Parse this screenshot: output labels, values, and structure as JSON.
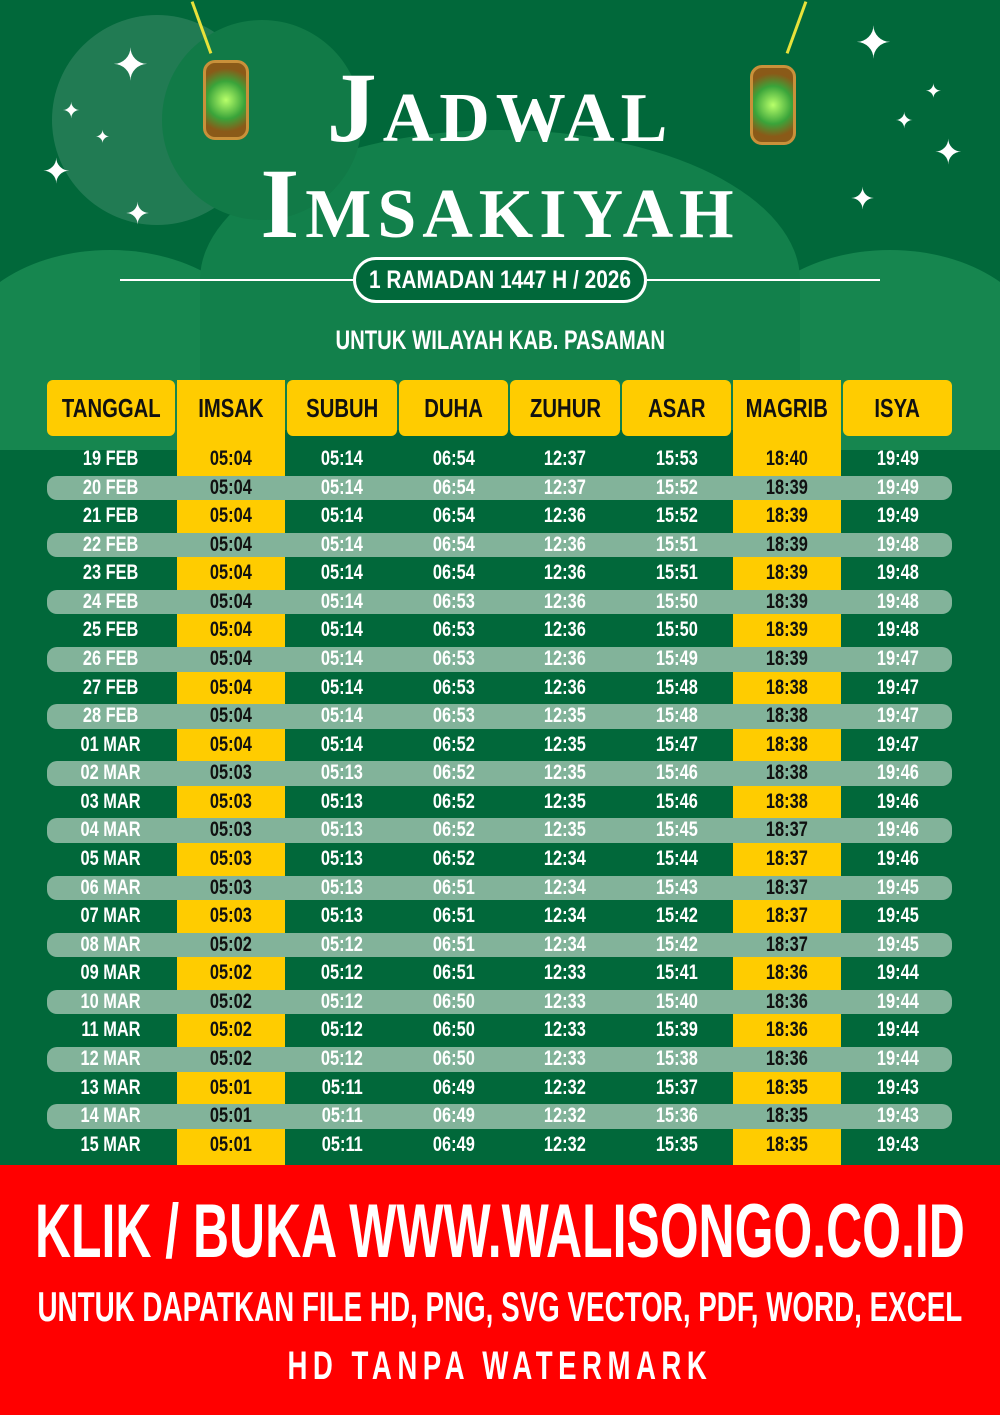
{
  "header": {
    "title_line1": "Jadwal",
    "title_line2": "Imsakiyah",
    "ramadan_label": "1 RAMADAN 1447 H / 2026",
    "region": "UNTUK WILAYAH KAB. PASAMAN"
  },
  "colors": {
    "background": "#01683a",
    "highlight": "#ffcc00",
    "row_alt": "#82b39a",
    "banner": "#ff0000"
  },
  "table": {
    "columns": [
      "TANGGAL",
      "IMSAK",
      "SUBUH",
      "DUHA",
      "ZUHUR",
      "ASAR",
      "MAGRIB",
      "ISYA"
    ],
    "rows": [
      [
        "19 FEB",
        "05:04",
        "05:14",
        "06:54",
        "12:37",
        "15:53",
        "18:40",
        "19:49"
      ],
      [
        "20 FEB",
        "05:04",
        "05:14",
        "06:54",
        "12:37",
        "15:52",
        "18:39",
        "19:49"
      ],
      [
        "21 FEB",
        "05:04",
        "05:14",
        "06:54",
        "12:36",
        "15:52",
        "18:39",
        "19:49"
      ],
      [
        "22 FEB",
        "05:04",
        "05:14",
        "06:54",
        "12:36",
        "15:51",
        "18:39",
        "19:48"
      ],
      [
        "23 FEB",
        "05:04",
        "05:14",
        "06:54",
        "12:36",
        "15:51",
        "18:39",
        "19:48"
      ],
      [
        "24 FEB",
        "05:04",
        "05:14",
        "06:53",
        "12:36",
        "15:50",
        "18:39",
        "19:48"
      ],
      [
        "25 FEB",
        "05:04",
        "05:14",
        "06:53",
        "12:36",
        "15:50",
        "18:39",
        "19:48"
      ],
      [
        "26 FEB",
        "05:04",
        "05:14",
        "06:53",
        "12:36",
        "15:49",
        "18:39",
        "19:47"
      ],
      [
        "27 FEB",
        "05:04",
        "05:14",
        "06:53",
        "12:36",
        "15:48",
        "18:38",
        "19:47"
      ],
      [
        "28 FEB",
        "05:04",
        "05:14",
        "06:53",
        "12:35",
        "15:48",
        "18:38",
        "19:47"
      ],
      [
        "01 MAR",
        "05:04",
        "05:14",
        "06:52",
        "12:35",
        "15:47",
        "18:38",
        "19:47"
      ],
      [
        "02 MAR",
        "05:03",
        "05:13",
        "06:52",
        "12:35",
        "15:46",
        "18:38",
        "19:46"
      ],
      [
        "03 MAR",
        "05:03",
        "05:13",
        "06:52",
        "12:35",
        "15:46",
        "18:38",
        "19:46"
      ],
      [
        "04 MAR",
        "05:03",
        "05:13",
        "06:52",
        "12:35",
        "15:45",
        "18:37",
        "19:46"
      ],
      [
        "05 MAR",
        "05:03",
        "05:13",
        "06:52",
        "12:34",
        "15:44",
        "18:37",
        "19:46"
      ],
      [
        "06 MAR",
        "05:03",
        "05:13",
        "06:51",
        "12:34",
        "15:43",
        "18:37",
        "19:45"
      ],
      [
        "07 MAR",
        "05:03",
        "05:13",
        "06:51",
        "12:34",
        "15:42",
        "18:37",
        "19:45"
      ],
      [
        "08 MAR",
        "05:02",
        "05:12",
        "06:51",
        "12:34",
        "15:42",
        "18:37",
        "19:45"
      ],
      [
        "09 MAR",
        "05:02",
        "05:12",
        "06:51",
        "12:33",
        "15:41",
        "18:36",
        "19:44"
      ],
      [
        "10 MAR",
        "05:02",
        "05:12",
        "06:50",
        "12:33",
        "15:40",
        "18:36",
        "19:44"
      ],
      [
        "11 MAR",
        "05:02",
        "05:12",
        "06:50",
        "12:33",
        "15:39",
        "18:36",
        "19:44"
      ],
      [
        "12 MAR",
        "05:02",
        "05:12",
        "06:50",
        "12:33",
        "15:38",
        "18:36",
        "19:44"
      ],
      [
        "13 MAR",
        "05:01",
        "05:11",
        "06:49",
        "12:32",
        "15:37",
        "18:35",
        "19:43"
      ],
      [
        "14 MAR",
        "05:01",
        "05:11",
        "06:49",
        "12:32",
        "15:36",
        "18:35",
        "19:43"
      ],
      [
        "15 MAR",
        "05:01",
        "05:11",
        "06:49",
        "12:32",
        "15:35",
        "18:35",
        "19:43"
      ]
    ]
  },
  "banner": {
    "line1": "KLIK / BUKA WWW.WALISONGO.CO.ID",
    "line2": "UNTUK DAPATKAN FILE HD, PNG, SVG VECTOR, PDF, WORD, EXCEL",
    "line3": "HD TANPA WATERMARK"
  }
}
